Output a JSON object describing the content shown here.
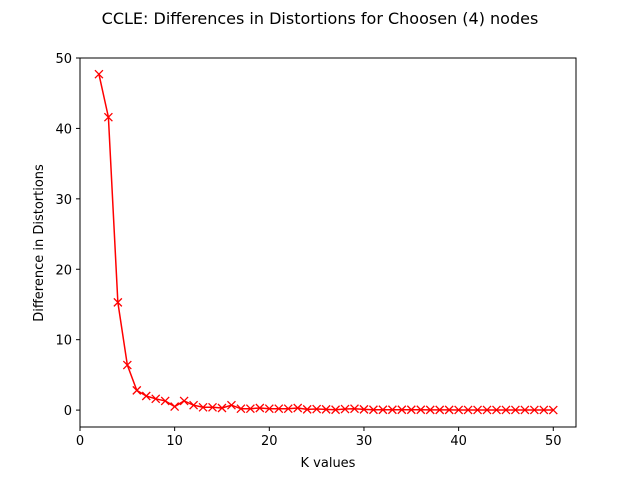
{
  "chart_data": {
    "type": "line",
    "title": "CCLE: Differences in Distortions for Choosen (4) nodes",
    "xlabel": "K values",
    "ylabel": "Difference in Distortions",
    "xlim": [
      0,
      52.4
    ],
    "ylim": [
      -2.4,
      50
    ],
    "xticks": [
      0,
      10,
      20,
      30,
      40,
      50
    ],
    "yticks": [
      0,
      10,
      20,
      30,
      40,
      50
    ],
    "grid": false,
    "color": "#ff0000",
    "marker": "x",
    "series": [
      {
        "x": [
          2,
          3,
          4,
          5,
          6,
          7,
          8,
          9,
          10,
          11,
          12,
          13,
          14,
          15,
          16,
          17,
          18,
          19,
          20,
          21,
          22,
          23,
          24,
          25,
          26,
          27,
          28,
          29,
          30,
          31,
          32,
          33,
          34,
          35,
          36,
          37,
          38,
          39,
          40,
          41,
          42,
          43,
          44,
          45,
          46,
          47,
          48,
          49,
          50
        ],
        "values": [
          47.7,
          41.6,
          15.3,
          6.4,
          2.8,
          2.0,
          1.6,
          1.3,
          0.5,
          1.3,
          0.7,
          0.4,
          0.4,
          0.3,
          0.7,
          0.2,
          0.2,
          0.3,
          0.2,
          0.2,
          0.2,
          0.3,
          0.1,
          0.15,
          0.1,
          0.05,
          0.15,
          0.2,
          0.1,
          0.05,
          0.05,
          0.05,
          0.05,
          0.05,
          0.05,
          0.03,
          0.03,
          0.03,
          0.02,
          0.02,
          0.02,
          0.02,
          0.02,
          0.02,
          0.02,
          0.02,
          0.02,
          0.02,
          0.01
        ]
      }
    ]
  }
}
